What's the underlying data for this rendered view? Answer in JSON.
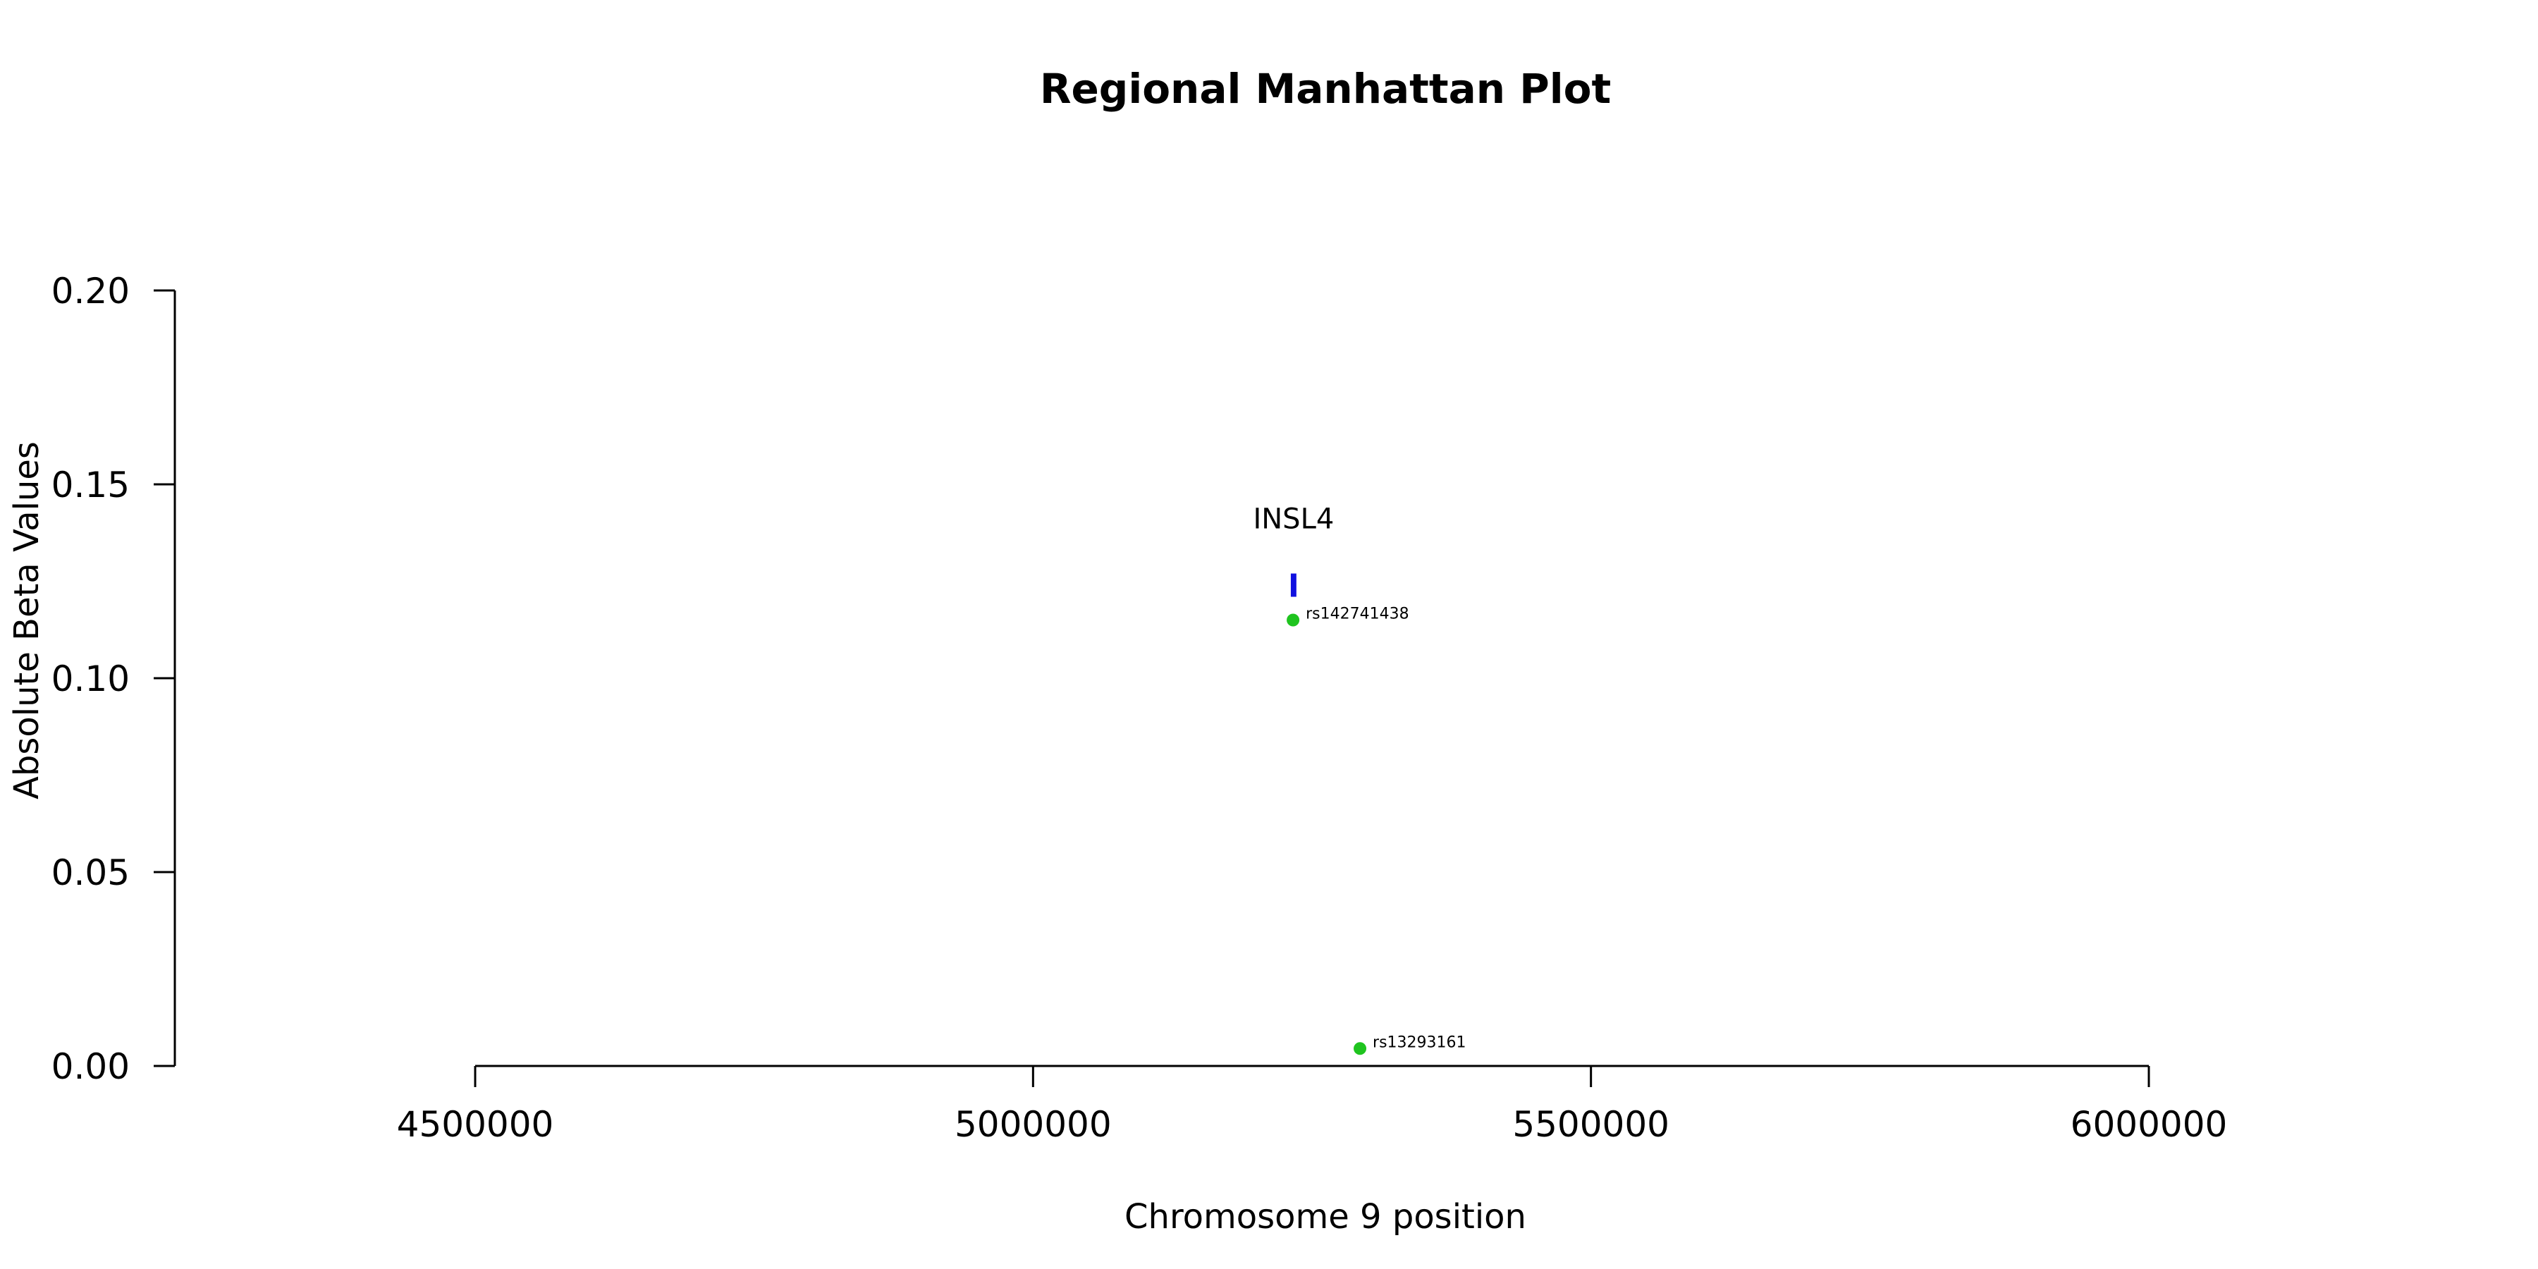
{
  "chart_data": {
    "type": "scatter",
    "title": "Regional Manhattan Plot",
    "xlabel": "Chromosome 9 position",
    "ylabel": "Absolute Beta Values",
    "xlim": [
      4500000,
      6000000
    ],
    "ylim": [
      0,
      0.2
    ],
    "x_ticks": [
      {
        "value": 4500000,
        "label": "4500000"
      },
      {
        "value": 5000000,
        "label": "5000000"
      },
      {
        "value": 5500000,
        "label": "5500000"
      },
      {
        "value": 6000000,
        "label": "6000000"
      }
    ],
    "y_ticks": [
      {
        "value": 0,
        "label": "0.00"
      },
      {
        "value": 0.05,
        "label": "0.05"
      },
      {
        "value": 0.1,
        "label": "0.10"
      },
      {
        "value": 0.15,
        "label": "0.15"
      },
      {
        "value": 0.2,
        "label": "0.20"
      }
    ],
    "points": [
      {
        "label": "rs142741438",
        "x": 5233000,
        "y": 0.115
      },
      {
        "label": "rs13293161",
        "x": 5293000,
        "y": 0.0045
      }
    ],
    "genes": [
      {
        "label": "INSL4",
        "start": 5231000,
        "end": 5236000,
        "y_low": 0.121,
        "y_high": 0.127
      }
    ],
    "grid": false,
    "colors": {
      "points": "#1fc41f",
      "gene": "#1010e0",
      "axis": "#000000"
    }
  }
}
